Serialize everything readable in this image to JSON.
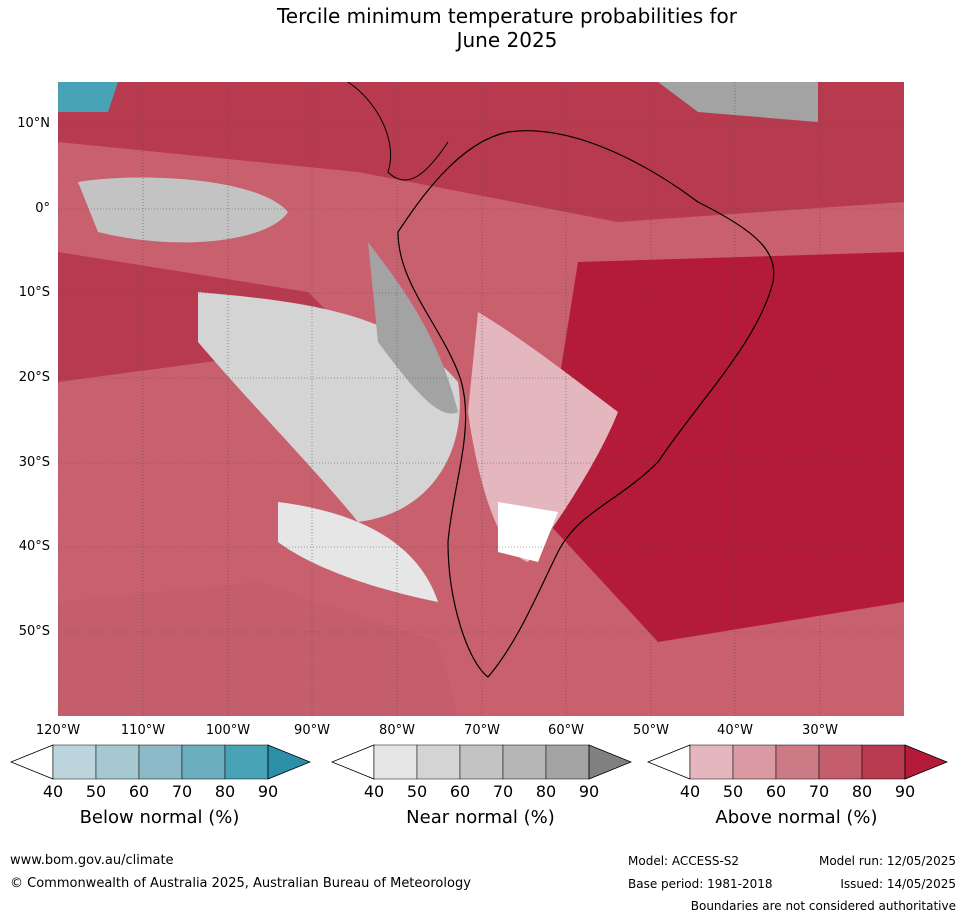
{
  "title_line1": "Tercile minimum temperature probabilities for",
  "title_line2": "June 2025",
  "lat_labels": [
    "10°N",
    "0°",
    "10°S",
    "20°S",
    "30°S",
    "40°S",
    "50°S"
  ],
  "lon_labels": [
    "120°W",
    "110°W",
    "100°W",
    "90°W",
    "80°W",
    "70°W",
    "60°W",
    "50°W",
    "40°W",
    "30°W"
  ],
  "colorbars": [
    {
      "title": "Below normal (%)",
      "ticks": [
        "40",
        "50",
        "60",
        "70",
        "80",
        "90"
      ],
      "colors": [
        "#ffffff",
        "#bcd5dc",
        "#a5c8d1",
        "#8bb9c7",
        "#6baebf",
        "#47a3b5",
        "#2b8fa8"
      ]
    },
    {
      "title": "Near normal (%)",
      "ticks": [
        "40",
        "50",
        "60",
        "70",
        "80",
        "90"
      ],
      "colors": [
        "#ffffff",
        "#e6e6e6",
        "#d4d4d4",
        "#c3c3c3",
        "#b5b5b5",
        "#a3a3a3",
        "#808080"
      ]
    },
    {
      "title": "Above normal (%)",
      "ticks": [
        "40",
        "50",
        "60",
        "70",
        "80",
        "90"
      ],
      "colors": [
        "#ffffff",
        "#e4b6bd",
        "#d99aa3",
        "#cc7a86",
        "#c45e6c",
        "#b83a4e",
        "#b31b39"
      ]
    }
  ],
  "footer": {
    "url": "www.bom.gov.au/climate",
    "copyright": "© Commonwealth of Australia 2025, Australian Bureau of Meteorology",
    "model": "Model: ACCESS-S2",
    "model_run": "Model run: 12/05/2025",
    "base_period": "Base period: 1981-2018",
    "issued": "Issued: 14/05/2025",
    "disclaimer": "Boundaries are not considered authoritative"
  }
}
